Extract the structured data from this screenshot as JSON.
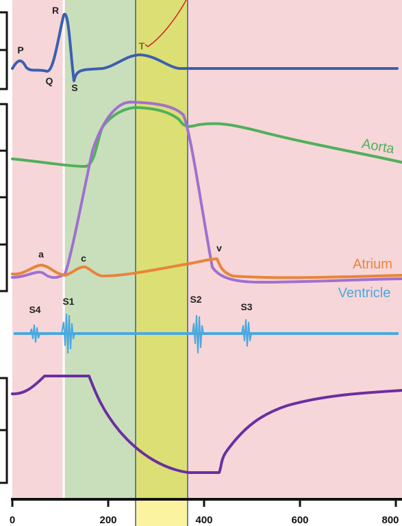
{
  "ecg": {
    "P": "P",
    "Q": "Q",
    "R": "R",
    "S": "S",
    "T": "T"
  },
  "pressure": {
    "aorta": "Aorta",
    "atrium": "Atrium",
    "ventricle": "Ventricle",
    "a": "a",
    "c": "c",
    "v": "v"
  },
  "sounds": {
    "S4": "S4",
    "S1": "S1",
    "S2": "S2",
    "S3": "S3"
  },
  "x_axis": {
    "xlim": [
      0,
      800
    ],
    "xticks": [
      0,
      200,
      400,
      600,
      800
    ]
  }
}
